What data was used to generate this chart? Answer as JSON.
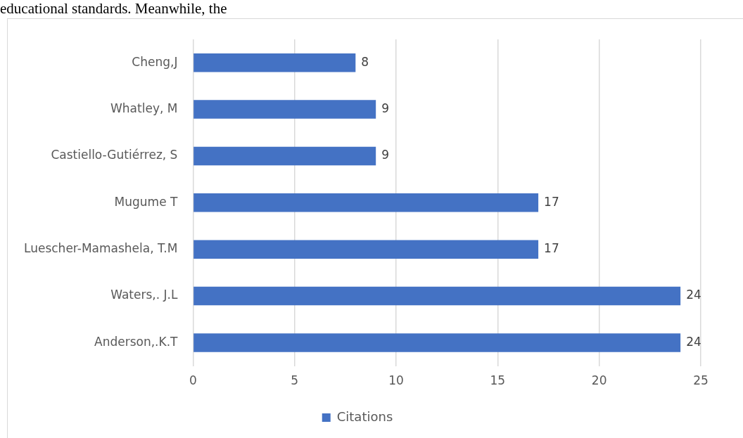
{
  "chart_data": {
    "type": "bar",
    "orientation": "horizontal",
    "annotations": [
      "educational standards. Meanwhile, the"
    ],
    "categories": [
      "Cheng,J",
      "Whatley, M",
      "Castiello-Gutiérrez, S",
      "Mugume T",
      "Luescher-Mamashela, T.M",
      "Waters,. J.L",
      "Anderson,.K.T"
    ],
    "series": [
      {
        "name": "Citations",
        "color": "#4472c4",
        "values": [
          8,
          9,
          9,
          17,
          17,
          24,
          24
        ]
      }
    ],
    "xlim": [
      0,
      25
    ],
    "xticks": [
      0,
      5,
      10,
      15,
      20,
      25
    ],
    "grid": "x",
    "legend": "bottom",
    "data_labels": true
  }
}
